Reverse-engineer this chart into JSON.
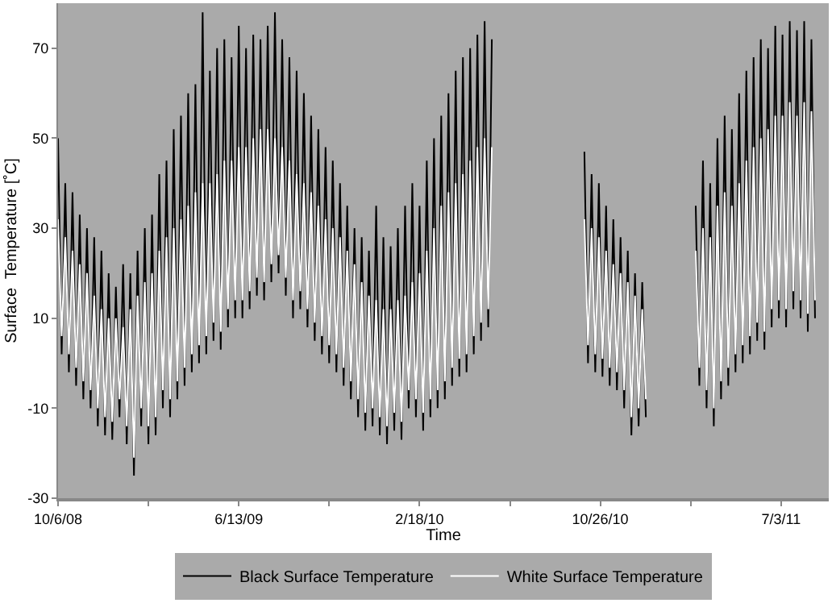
{
  "chart_data": {
    "type": "line",
    "xlabel": "Time",
    "ylabel": "Surface  Temperature [˚C]",
    "legend": "bottom",
    "xlim": [
      "2008-10-06",
      "2011-09-07"
    ],
    "ylim": [
      -30,
      80
    ],
    "xticks": [
      {
        "value": "2008-10-06",
        "label": "10/6/08"
      },
      {
        "value": "2009-02-08",
        "label": null
      },
      {
        "value": "2009-06-13",
        "label": "6/13/09"
      },
      {
        "value": "2009-10-16",
        "label": null
      },
      {
        "value": "2010-02-18",
        "label": "2/18/10"
      },
      {
        "value": "2010-06-23",
        "label": null
      },
      {
        "value": "2010-10-26",
        "label": "10/26/10"
      },
      {
        "value": "2011-02-28",
        "label": null
      },
      {
        "value": "2011-07-03",
        "label": "7/3/11"
      }
    ],
    "yticks": [
      -30,
      -10,
      10,
      30,
      50,
      70
    ],
    "x": [
      "2008-10-06",
      "2008-10-11",
      "2008-10-16",
      "2008-10-21",
      "2008-10-26",
      "2008-10-31",
      "2008-11-05",
      "2008-11-10",
      "2008-11-15",
      "2008-11-20",
      "2008-11-25",
      "2008-11-30",
      "2008-12-05",
      "2008-12-10",
      "2008-12-15",
      "2008-12-20",
      "2008-12-25",
      "2008-12-30",
      "2009-01-04",
      "2009-01-09",
      "2009-01-14",
      "2009-01-19",
      "2009-01-24",
      "2009-01-29",
      "2009-02-03",
      "2009-02-08",
      "2009-02-13",
      "2009-02-18",
      "2009-02-23",
      "2009-02-28",
      "2009-03-05",
      "2009-03-10",
      "2009-03-15",
      "2009-03-20",
      "2009-03-25",
      "2009-03-30",
      "2009-04-04",
      "2009-04-09",
      "2009-04-14",
      "2009-04-19",
      "2009-04-24",
      "2009-04-29",
      "2009-05-04",
      "2009-05-09",
      "2009-05-14",
      "2009-05-19",
      "2009-05-24",
      "2009-05-29",
      "2009-06-03",
      "2009-06-08",
      "2009-06-13",
      "2009-06-18",
      "2009-06-23",
      "2009-06-28",
      "2009-07-03",
      "2009-07-08",
      "2009-07-13",
      "2009-07-18",
      "2009-07-23",
      "2009-07-28",
      "2009-08-02",
      "2009-08-07",
      "2009-08-12",
      "2009-08-17",
      "2009-08-22",
      "2009-08-27",
      "2009-09-01",
      "2009-09-06",
      "2009-09-11",
      "2009-09-16",
      "2009-09-21",
      "2009-09-26",
      "2009-10-01",
      "2009-10-06",
      "2009-10-11",
      "2009-10-16",
      "2009-10-21",
      "2009-10-26",
      "2009-10-31",
      "2009-11-05",
      "2009-11-10",
      "2009-11-15",
      "2009-11-20",
      "2009-11-25",
      "2009-11-30",
      "2009-12-05",
      "2009-12-10",
      "2009-12-15",
      "2009-12-20",
      "2009-12-25",
      "2009-12-30",
      "2010-01-04",
      "2010-01-09",
      "2010-01-14",
      "2010-01-19",
      "2010-01-24",
      "2010-01-29",
      "2010-02-03",
      "2010-02-08",
      "2010-02-13",
      "2010-02-18",
      "2010-02-23",
      "2010-02-28",
      "2010-03-05",
      "2010-03-10",
      "2010-03-15",
      "2010-03-20",
      "2010-03-25",
      "2010-03-30",
      "2010-04-04",
      "2010-04-09",
      "2010-04-14",
      "2010-04-19",
      "2010-04-24",
      "2010-04-29",
      "2010-05-04",
      "2010-05-09",
      "2010-05-14",
      "2010-05-19",
      "2010-05-24",
      "2010-05-29",
      "2010-08-01",
      "2010-10-04",
      "2010-10-09",
      "2010-10-14",
      "2010-10-19",
      "2010-10-24",
      "2010-10-29",
      "2010-11-03",
      "2010-11-08",
      "2010-11-13",
      "2010-11-18",
      "2010-11-23",
      "2010-11-28",
      "2010-12-03",
      "2010-12-08",
      "2010-12-13",
      "2010-12-18",
      "2010-12-23",
      "2010-12-28",
      "2011-02-01",
      "2011-03-07",
      "2011-03-12",
      "2011-03-17",
      "2011-03-22",
      "2011-03-27",
      "2011-04-01",
      "2011-04-06",
      "2011-04-11",
      "2011-04-16",
      "2011-04-21",
      "2011-04-26",
      "2011-05-01",
      "2011-05-06",
      "2011-05-11",
      "2011-05-16",
      "2011-05-21",
      "2011-05-26",
      "2011-05-31",
      "2011-06-05",
      "2011-06-10",
      "2011-06-15",
      "2011-06-20",
      "2011-06-25",
      "2011-06-30",
      "2011-07-05",
      "2011-07-10",
      "2011-07-15",
      "2011-07-20",
      "2011-07-25",
      "2011-07-30",
      "2011-08-04",
      "2011-08-09",
      "2011-08-14",
      "2011-08-19"
    ],
    "series": [
      {
        "name": "Black Surface Temperature",
        "color": "#000000",
        "values": [
          50,
          2,
          40,
          -2,
          38,
          -5,
          33,
          -8,
          30,
          -10,
          28,
          -14,
          25,
          -16,
          20,
          -17,
          17,
          -12,
          22,
          -18,
          20,
          -25,
          25,
          -14,
          30,
          -18,
          33,
          -16,
          42,
          -10,
          45,
          -12,
          52,
          -8,
          55,
          -5,
          60,
          -2,
          62,
          0,
          78,
          2,
          65,
          5,
          70,
          3,
          72,
          8,
          68,
          10,
          75,
          10,
          70,
          12,
          73,
          15,
          72,
          14,
          75,
          18,
          78,
          20,
          72,
          15,
          68,
          10,
          65,
          12,
          60,
          8,
          55,
          5,
          52,
          2,
          48,
          0,
          45,
          -2,
          40,
          -5,
          35,
          -8,
          30,
          -12,
          28,
          -15,
          25,
          -14,
          35,
          -16,
          28,
          -18,
          26,
          -15,
          30,
          -17,
          35,
          -10,
          40,
          -12,
          35,
          -15,
          45,
          -12,
          50,
          -10,
          55,
          -8,
          60,
          -5,
          65,
          -3,
          68,
          -2,
          70,
          2,
          73,
          5,
          76,
          8,
          72,
          null,
          47,
          0,
          42,
          -2,
          40,
          -3,
          35,
          -5,
          32,
          -6,
          28,
          -10,
          25,
          -16,
          20,
          -14,
          18,
          -12,
          null,
          35,
          -5,
          45,
          -10,
          40,
          -14,
          50,
          -8,
          55,
          -5,
          52,
          -2,
          60,
          0,
          65,
          2,
          68,
          5,
          72,
          3,
          70,
          8,
          75,
          10,
          73,
          8,
          76,
          12,
          74,
          10,
          76,
          7,
          72,
          10
        ]
      },
      {
        "name": "White Surface Temperature",
        "color": "#ffffff",
        "values": [
          32,
          6,
          28,
          2,
          25,
          -1,
          22,
          -4,
          20,
          -6,
          15,
          -10,
          12,
          -12,
          10,
          -13,
          10,
          -8,
          8,
          -14,
          12,
          -21,
          15,
          -10,
          18,
          -14,
          20,
          -12,
          25,
          -6,
          28,
          -8,
          30,
          -4,
          32,
          -1,
          35,
          2,
          38,
          4,
          40,
          6,
          40,
          9,
          42,
          7,
          45,
          12,
          45,
          14,
          48,
          14,
          48,
          16,
          50,
          19,
          52,
          18,
          52,
          22,
          50,
          24,
          48,
          19,
          45,
          14,
          42,
          16,
          40,
          12,
          38,
          9,
          35,
          6,
          32,
          4,
          30,
          2,
          28,
          -1,
          25,
          -4,
          22,
          -8,
          18,
          -11,
          15,
          -10,
          14,
          -12,
          12,
          -14,
          12,
          -11,
          14,
          -13,
          15,
          -6,
          18,
          -8,
          20,
          -11,
          25,
          -8,
          30,
          -6,
          35,
          -4,
          38,
          -1,
          40,
          1,
          42,
          2,
          45,
          6,
          48,
          9,
          50,
          12,
          48,
          null,
          32,
          4,
          30,
          2,
          28,
          1,
          25,
          -1,
          22,
          -2,
          20,
          -6,
          18,
          -12,
          15,
          -10,
          12,
          -8,
          null,
          25,
          -1,
          30,
          -6,
          28,
          -10,
          35,
          -4,
          38,
          -1,
          35,
          2,
          40,
          4,
          45,
          6,
          48,
          9,
          50,
          7,
          52,
          12,
          55,
          14,
          55,
          12,
          58,
          16,
          55,
          14,
          58,
          11,
          56,
          14
        ]
      }
    ]
  }
}
